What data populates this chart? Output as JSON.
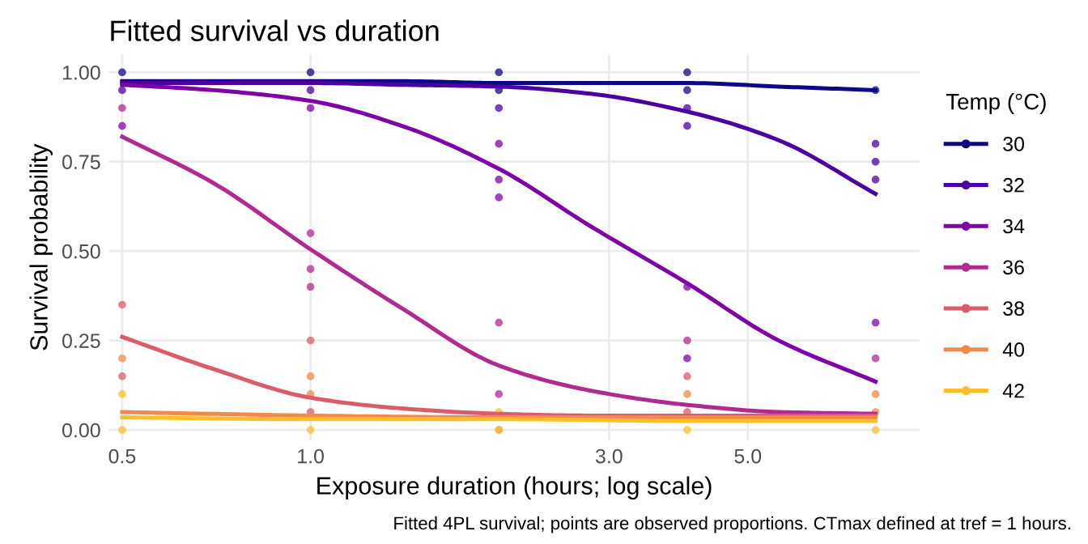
{
  "chart_data": {
    "type": "line",
    "title": "Fitted survival vs duration",
    "xlabel": "Exposure duration (hours; log scale)",
    "ylabel": "Survival probability",
    "legend_title": "Temp (°C)",
    "log": "x",
    "xlim": [
      0.476,
      9.4
    ],
    "ylim": [
      -0.03,
      1.05
    ],
    "xticks": [
      {
        "value": 0.5,
        "label": "0.5"
      },
      {
        "value": 1,
        "label": "1.0"
      },
      {
        "value": 3,
        "label": "3.0"
      },
      {
        "value": 5,
        "label": "5.0"
      }
    ],
    "yticks": [
      {
        "value": 0,
        "label": "0.00"
      },
      {
        "value": 0.25,
        "label": "0.25"
      },
      {
        "value": 0.5,
        "label": "0.50"
      },
      {
        "value": 0.75,
        "label": "0.75"
      },
      {
        "value": 1,
        "label": "1.00"
      }
    ],
    "grid": true,
    "legend": "right",
    "annotations": [
      "Fitted 4PL survival; points are observed proportions. CTmax defined at tref = 1 hours."
    ],
    "series": [
      {
        "name": "30",
        "color": "#0d0887",
        "marker": "none",
        "x": [
          0.5,
          0.7,
          1,
          1.4,
          2,
          2.8,
          4,
          5.6,
          8
        ],
        "values": [
          0.975,
          0.975,
          0.975,
          0.975,
          0.97,
          0.97,
          0.97,
          0.96,
          0.95
        ]
      },
      {
        "name": "32",
        "color": "#4c02a1",
        "marker": "none",
        "x": [
          0.5,
          0.7,
          1,
          1.4,
          2,
          2.8,
          4,
          5.6,
          8
        ],
        "values": [
          0.97,
          0.97,
          0.97,
          0.965,
          0.96,
          0.94,
          0.89,
          0.81,
          0.66
        ]
      },
      {
        "name": "34",
        "color": "#7e03a8",
        "marker": "none",
        "x": [
          0.5,
          0.7,
          1,
          1.4,
          2,
          2.8,
          4,
          5.6,
          8
        ],
        "values": [
          0.965,
          0.95,
          0.92,
          0.85,
          0.73,
          0.57,
          0.41,
          0.25,
          0.135
        ]
      },
      {
        "name": "36",
        "color": "#b02a8f",
        "marker": "none",
        "x": [
          0.5,
          0.7,
          1,
          1.4,
          2,
          2.8,
          4,
          5.6,
          8
        ],
        "values": [
          0.82,
          0.69,
          0.505,
          0.34,
          0.18,
          0.11,
          0.07,
          0.05,
          0.045
        ]
      },
      {
        "name": "38",
        "color": "#db5c68",
        "marker": "none",
        "x": [
          0.5,
          0.7,
          1,
          1.4,
          2,
          2.8,
          4,
          5.6,
          8
        ],
        "values": [
          0.26,
          0.17,
          0.09,
          0.06,
          0.045,
          0.04,
          0.04,
          0.04,
          0.04
        ]
      },
      {
        "name": "40",
        "color": "#f48849",
        "marker": "none",
        "x": [
          0.5,
          1,
          2,
          4,
          8
        ],
        "values": [
          0.05,
          0.04,
          0.035,
          0.035,
          0.035
        ]
      },
      {
        "name": "42",
        "color": "#febd2a",
        "marker": "none",
        "x": [
          0.5,
          1,
          2,
          4,
          8
        ],
        "values": [
          0.035,
          0.03,
          0.03,
          0.025,
          0.025
        ]
      },
      {
        "color": "#0d0887",
        "type": "scatter",
        "marker": "circle",
        "x": [
          0.5,
          1,
          2,
          4,
          8,
          2,
          4
        ],
        "values": [
          1.0,
          1.0,
          1.0,
          1.0,
          0.95,
          0.95,
          0.95
        ]
      },
      {
        "color": "#4c02a1",
        "type": "scatter",
        "marker": "circle",
        "x": [
          0.5,
          1,
          2,
          4,
          4,
          8,
          8,
          8
        ],
        "values": [
          0.95,
          0.95,
          0.9,
          0.9,
          0.85,
          0.8,
          0.75,
          0.7
        ]
      },
      {
        "color": "#7e03a8",
        "type": "scatter",
        "marker": "circle",
        "x": [
          0.5,
          1,
          2,
          2,
          2,
          4,
          4,
          8
        ],
        "values": [
          0.85,
          0.9,
          0.8,
          0.7,
          0.65,
          0.4,
          0.2,
          0.3
        ]
      },
      {
        "color": "#b02a8f",
        "type": "scatter",
        "marker": "circle",
        "x": [
          0.5,
          1,
          1,
          1,
          2,
          2,
          4,
          8
        ],
        "values": [
          0.9,
          0.55,
          0.45,
          0.4,
          0.3,
          0.1,
          0.25,
          0.2
        ]
      },
      {
        "color": "#db5c68",
        "type": "scatter",
        "marker": "circle",
        "x": [
          0.5,
          0.5,
          1,
          1,
          4,
          4
        ],
        "values": [
          0.35,
          0.15,
          0.25,
          0.05,
          0.15,
          0.05
        ]
      },
      {
        "color": "#f48849",
        "type": "scatter",
        "marker": "circle",
        "x": [
          0.5,
          1,
          1,
          4,
          8,
          8,
          2
        ],
        "values": [
          0.2,
          0.15,
          0.1,
          0.1,
          0.1,
          0.05,
          0.0
        ]
      },
      {
        "color": "#febd2a",
        "type": "scatter",
        "marker": "circle",
        "x": [
          0.5,
          0.5,
          1,
          2,
          2,
          4,
          8
        ],
        "values": [
          0.1,
          0.0,
          0.0,
          0.05,
          0.0,
          0.0,
          0.0
        ]
      }
    ]
  }
}
